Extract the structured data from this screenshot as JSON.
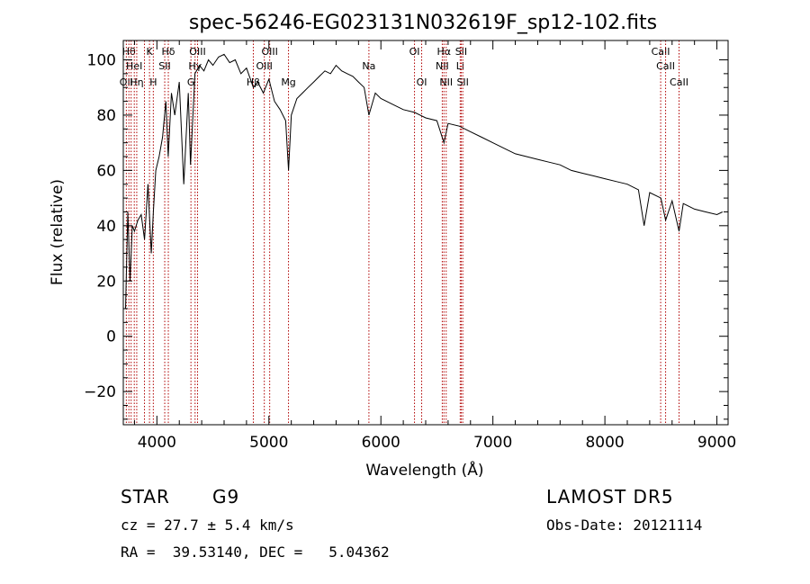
{
  "chart_data": {
    "type": "line",
    "title": "spec-56246-EG023131N032619F_sp12-102.fits",
    "xlabel": "Wavelength (Å)",
    "ylabel": "Flux (relative)",
    "xlim": [
      3700,
      9100
    ],
    "ylim": [
      -32,
      107
    ],
    "xticks": [
      4000,
      5000,
      6000,
      7000,
      8000,
      9000
    ],
    "yticks": [
      -20,
      0,
      20,
      40,
      60,
      80,
      100
    ],
    "grid": false,
    "series_color": "#000000",
    "line_color": "#b00000",
    "series": [
      {
        "x": [
          3720,
          3740,
          3760,
          3780,
          3800,
          3830,
          3860,
          3890,
          3920,
          3950,
          3968,
          3990,
          4020,
          4050,
          4080,
          4101,
          4130,
          4160,
          4200,
          4240,
          4280,
          4300,
          4340,
          4380,
          4420,
          4460,
          4500,
          4550,
          4600,
          4650,
          4700,
          4750,
          4800,
          4861,
          4900,
          4950,
          5000,
          5050,
          5100,
          5150,
          5175,
          5200,
          5250,
          5300,
          5350,
          5400,
          5450,
          5500,
          5550,
          5600,
          5650,
          5700,
          5750,
          5800,
          5850,
          5893,
          5950,
          6000,
          6100,
          6200,
          6300,
          6400,
          6500,
          6563,
          6600,
          6700,
          6800,
          6900,
          7000,
          7100,
          7200,
          7300,
          7400,
          7500,
          7600,
          7700,
          7800,
          7900,
          8000,
          8100,
          8200,
          8300,
          8350,
          8400,
          8500,
          8542,
          8600,
          8662,
          8700,
          8800,
          8900,
          9000,
          9050
        ],
        "values": [
          10,
          45,
          20,
          40,
          38,
          42,
          44,
          35,
          55,
          30,
          45,
          60,
          65,
          72,
          85,
          65,
          88,
          80,
          92,
          55,
          88,
          62,
          95,
          98,
          96,
          100,
          98,
          101,
          102,
          99,
          100,
          95,
          97,
          90,
          92,
          88,
          93,
          85,
          82,
          78,
          60,
          80,
          86,
          88,
          90,
          92,
          94,
          96,
          95,
          98,
          96,
          95,
          94,
          92,
          90,
          80,
          88,
          86,
          84,
          82,
          81,
          79,
          78,
          70,
          77,
          76,
          74,
          72,
          70,
          68,
          66,
          65,
          64,
          63,
          62,
          60,
          59,
          58,
          57,
          56,
          55,
          53,
          40,
          52,
          50,
          42,
          49,
          38,
          48,
          46,
          45,
          44,
          45
        ]
      }
    ],
    "lines": [
      {
        "x": 3727,
        "label": "OII",
        "row": 3
      },
      {
        "x": 3750,
        "label": "Hθ",
        "row": 1
      },
      {
        "x": 3770,
        "label": "",
        "row": 0
      },
      {
        "x": 3798,
        "label": "HeI",
        "row": 2
      },
      {
        "x": 3820,
        "label": "Hη",
        "row": 3
      },
      {
        "x": 3889,
        "label": "",
        "row": 0
      },
      {
        "x": 3934,
        "label": "K",
        "row": 1
      },
      {
        "x": 3968,
        "label": "H",
        "row": 3
      },
      {
        "x": 4070,
        "label": "SII",
        "row": 2
      },
      {
        "x": 4102,
        "label": "Hδ",
        "row": 1
      },
      {
        "x": 4304,
        "label": "G",
        "row": 3
      },
      {
        "x": 4341,
        "label": "Hγ",
        "row": 2
      },
      {
        "x": 4363,
        "label": "OIII",
        "row": 1
      },
      {
        "x": 4861,
        "label": "Hβ",
        "row": 3
      },
      {
        "x": 4959,
        "label": "OIII",
        "row": 2
      },
      {
        "x": 5007,
        "label": "OIII",
        "row": 1
      },
      {
        "x": 5175,
        "label": "Mg",
        "row": 3
      },
      {
        "x": 5893,
        "label": "Na",
        "row": 2
      },
      {
        "x": 6300,
        "label": "OI",
        "row": 1
      },
      {
        "x": 6364,
        "label": "OI",
        "row": 3
      },
      {
        "x": 6548,
        "label": "NII",
        "row": 2
      },
      {
        "x": 6563,
        "label": "Hα",
        "row": 1
      },
      {
        "x": 6583,
        "label": "NII",
        "row": 3
      },
      {
        "x": 6708,
        "label": "Li",
        "row": 2
      },
      {
        "x": 6717,
        "label": "SII",
        "row": 1
      },
      {
        "x": 6731,
        "label": "SII",
        "row": 3
      },
      {
        "x": 8498,
        "label": "CaII",
        "row": 1
      },
      {
        "x": 8542,
        "label": "CaII",
        "row": 2
      },
      {
        "x": 8662,
        "label": "CaII",
        "row": 3
      }
    ]
  },
  "info": {
    "object_class": "STAR",
    "subclass": "G9",
    "survey": "LAMOST DR5",
    "redshift": "cz = 27.7 ± 5.4 km/s",
    "obs_date": "Obs-Date: 20121114",
    "coords": "RA =  39.53140, DEC =   5.04362"
  }
}
